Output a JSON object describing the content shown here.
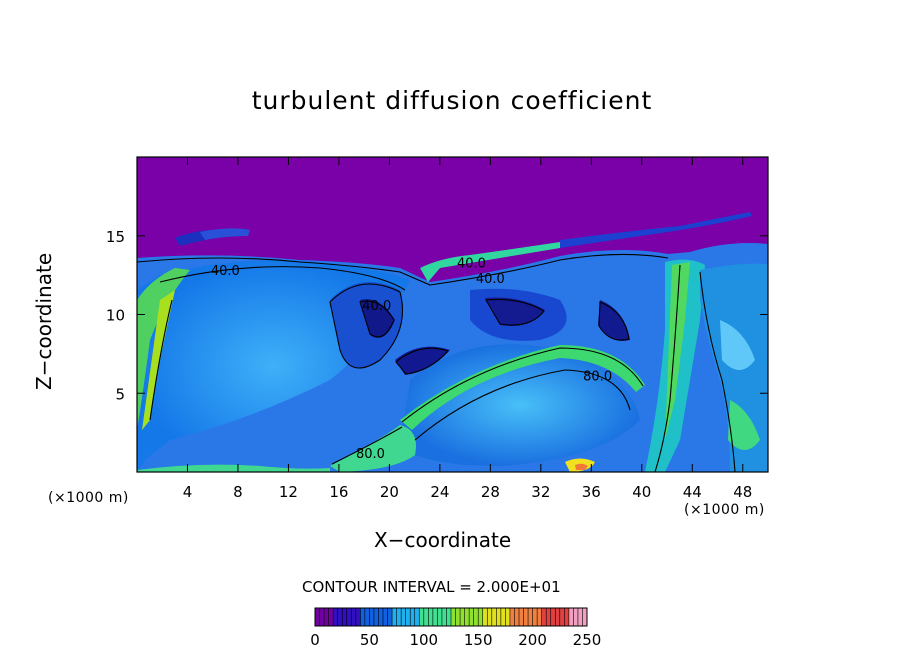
{
  "chart_data": {
    "type": "heatmap",
    "title": "turbulent diffusion coefficient",
    "xlabel": "X−coordinate",
    "ylabel": "Z−coordinate",
    "x_unit": "(×1000 m)",
    "z_unit": "(×1000 m)",
    "xlim": [
      0,
      50
    ],
    "ylim": [
      0,
      20
    ],
    "x_ticks": [
      4,
      8,
      12,
      16,
      20,
      24,
      28,
      32,
      36,
      40,
      44,
      48
    ],
    "y_ticks": [
      5,
      10,
      15
    ],
    "contour_interval_text": "CONTOUR INTERVAL = 2.000E+01",
    "contour_labels": [
      {
        "text": "40.0",
        "x": 28,
        "z": 12
      },
      {
        "text": "40.0",
        "x": 19,
        "z": 10.3
      },
      {
        "text": "80.0",
        "x": 36.5,
        "z": 5.8
      },
      {
        "text": "80.0",
        "x": 18.5,
        "z": 0.9
      },
      {
        "text": "40.0",
        "x": 7,
        "z": 12.5
      },
      {
        "text": "40.0",
        "x": 26.5,
        "z": 13
      }
    ],
    "colorbar": {
      "range": [
        0,
        250
      ],
      "tick_labels": [
        "0",
        "50",
        "100",
        "150",
        "200",
        "250"
      ],
      "colors": [
        "#7000a0",
        "#3010c0",
        "#1060e0",
        "#20b0f0",
        "#40e090",
        "#90e030",
        "#e0e020",
        "#f08040",
        "#e04040",
        "#f0a0c0"
      ]
    },
    "grid": false,
    "legend": "colorbar bottom-center"
  }
}
